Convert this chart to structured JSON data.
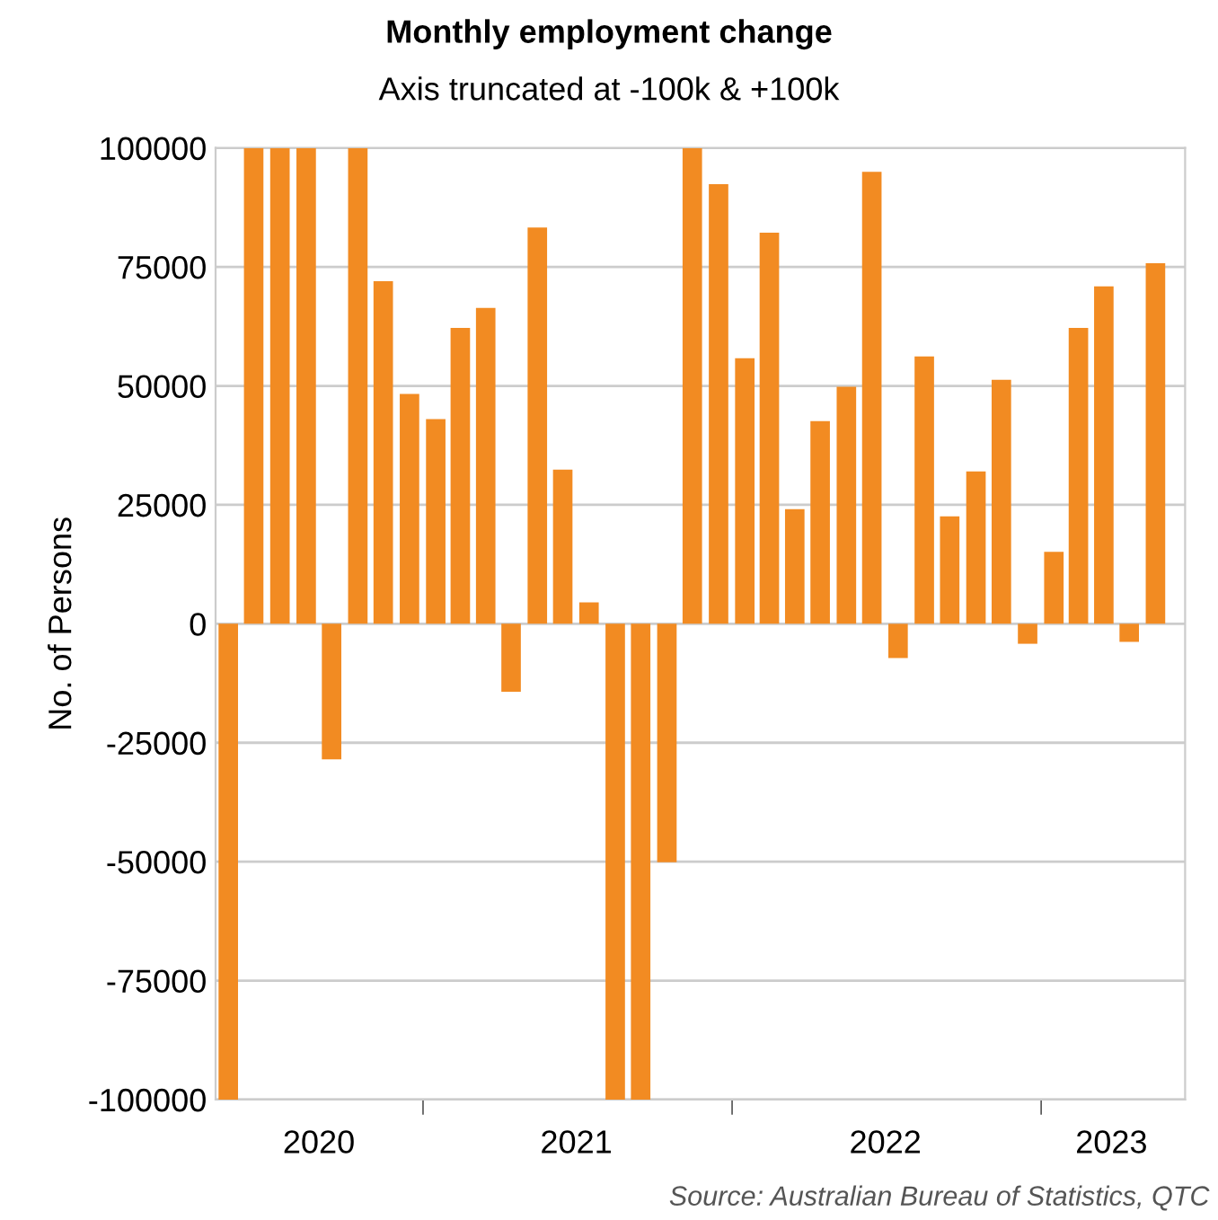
{
  "chart_data": {
    "type": "bar",
    "title": "Monthly employment change",
    "subtitle": "Axis truncated at -100k & +100k",
    "ylabel": "No. of Persons",
    "annotations": [
      "Source: Australian Bureau of Statistics, QTC"
    ],
    "x": [
      "2020-05-16",
      "2020-06-15",
      "2020-07-16",
      "2020-08-16",
      "2020-09-15",
      "2020-10-16",
      "2020-11-15",
      "2020-12-16",
      "2021-01-16",
      "2021-02-14",
      "2021-03-16",
      "2021-04-15",
      "2021-05-16",
      "2021-06-15",
      "2021-07-16",
      "2021-08-16",
      "2021-09-15",
      "2021-10-16",
      "2021-11-15",
      "2021-12-16",
      "2022-01-16",
      "2022-02-14",
      "2022-03-16",
      "2022-04-15",
      "2022-05-16",
      "2022-06-15",
      "2022-07-16",
      "2022-08-16",
      "2022-09-15",
      "2022-10-16",
      "2022-11-15",
      "2022-12-16",
      "2023-01-16",
      "2023-02-14",
      "2023-03-16",
      "2023-04-15",
      "2023-05-16"
    ],
    "values": [
      -100000,
      100000,
      100000,
      100000,
      -28500,
      100000,
      72000,
      48300,
      43000,
      62200,
      66400,
      -14300,
      83300,
      32400,
      4500,
      -100000,
      -100000,
      -50100,
      100000,
      92400,
      55800,
      82200,
      24100,
      42600,
      49800,
      95000,
      -7200,
      56200,
      22600,
      32000,
      51300,
      -4200,
      15100,
      62200,
      70900,
      -3800,
      75800
    ],
    "color": "#f28b22",
    "xlim": [
      "2020-05-01",
      "2023-06-20"
    ],
    "xticks": [
      {
        "value": "2020-08-31",
        "label": "2020"
      },
      {
        "value": "2021-01-01",
        "label": null
      },
      {
        "value": "2021-07-01",
        "label": "2021"
      },
      {
        "value": "2022-01-01",
        "label": null
      },
      {
        "value": "2022-07-01",
        "label": "2022"
      },
      {
        "value": "2023-01-01",
        "label": null
      },
      {
        "value": "2023-03-25",
        "label": "2023"
      }
    ],
    "ylim": [
      -100000,
      100000
    ],
    "yticks": [
      -100000,
      -75000,
      -50000,
      -25000,
      0,
      25000,
      50000,
      75000,
      100000
    ],
    "grid": "y",
    "legend": false
  }
}
